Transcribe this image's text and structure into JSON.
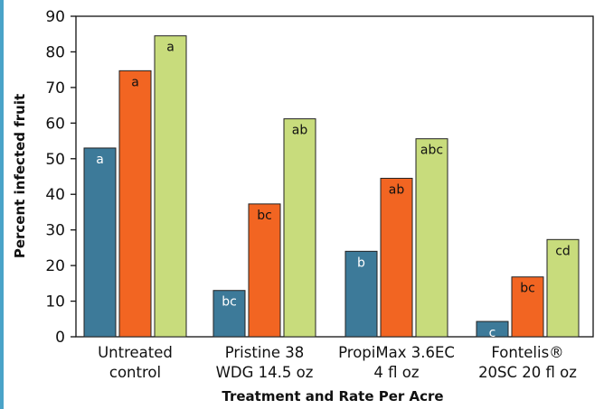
{
  "chart_data": {
    "type": "bar",
    "categories": [
      [
        "Untreated",
        "control"
      ],
      [
        "Pristine 38",
        "WDG 14.5 oz"
      ],
      [
        "PropiMax 3.6EC",
        "4 fl oz"
      ],
      [
        "Fontelis®",
        "20SC 20 fl oz"
      ]
    ],
    "series": [
      {
        "color": "#3d7a99",
        "values": [
          53,
          13,
          24,
          4.3
        ],
        "labels": [
          "a",
          "bc",
          "b",
          "c"
        ],
        "label_color": "#ffffff"
      },
      {
        "color": "#f26522",
        "values": [
          74.7,
          37.3,
          44.5,
          16.8
        ],
        "labels": [
          "a",
          "bc",
          "ab",
          "bc"
        ],
        "label_color": "#111111"
      },
      {
        "color": "#c8dc7c",
        "values": [
          84.5,
          61.2,
          55.6,
          27.3
        ],
        "labels": [
          "a",
          "ab",
          "abc",
          "cd"
        ],
        "label_color": "#111111"
      }
    ],
    "xlabel": "Treatment and Rate Per Acre",
    "ylabel": "Percent infected fruit",
    "ylim": [
      0,
      90
    ],
    "yticks": [
      0,
      10,
      20,
      30,
      40,
      50,
      60,
      70,
      80,
      90
    ],
    "grid": false,
    "legend": "none"
  }
}
